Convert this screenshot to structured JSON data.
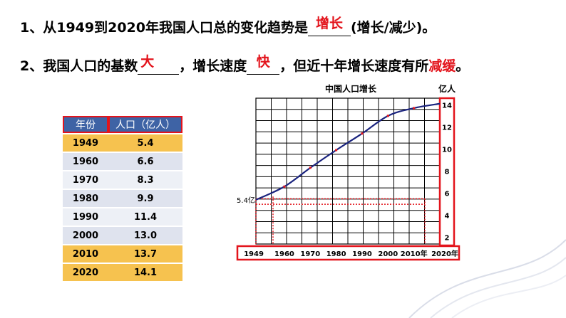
{
  "question1": {
    "prefix": "1、从1949到2020年我国人口总的变化趋势是",
    "answer": "增长",
    "suffix": "(增长/减少)。"
  },
  "question2": {
    "prefix": "2、我国人口的基数",
    "answer1": "大",
    "middle": "，增长速度",
    "answer2": "快",
    "middle2": "，但近十年增长速度有所",
    "answer3": "减缓",
    "suffix": "。"
  },
  "table": {
    "headers": [
      "年份",
      "人口（亿人）"
    ],
    "rows": [
      {
        "year": "1949",
        "pop": "5.4"
      },
      {
        "year": "1960",
        "pop": "6.6"
      },
      {
        "year": "1970",
        "pop": "8.3"
      },
      {
        "year": "1980",
        "pop": "9.9"
      },
      {
        "year": "1990",
        "pop": "11.4"
      },
      {
        "year": "2000",
        "pop": "13.0"
      },
      {
        "year": "2010",
        "pop": "13.7"
      },
      {
        "year": "2020",
        "pop": "14.1"
      }
    ]
  },
  "chart_data": {
    "type": "line",
    "title": "中国人口增长",
    "ylabel": "亿人",
    "x": [
      1949,
      1960,
      1970,
      1980,
      1990,
      2000,
      2010,
      2020
    ],
    "x_tick_labels": [
      "1949",
      "1960",
      "1970",
      "1980",
      "1990",
      "2000",
      "2010年",
      "2020年"
    ],
    "y_ticks": [
      "2",
      "4",
      "6",
      "8",
      "10",
      "12",
      "14"
    ],
    "ylim": [
      1.4,
      14.6
    ],
    "series": [
      {
        "values": [
          5.4,
          6.6,
          8.3,
          9.9,
          11.4,
          13.0,
          13.7,
          14.1
        ]
      }
    ],
    "annotation_label": "5.4亿",
    "grid": true,
    "line_color": "#1a237e",
    "marker_color": "#e3141c",
    "highlight_color": "#e3141c"
  }
}
